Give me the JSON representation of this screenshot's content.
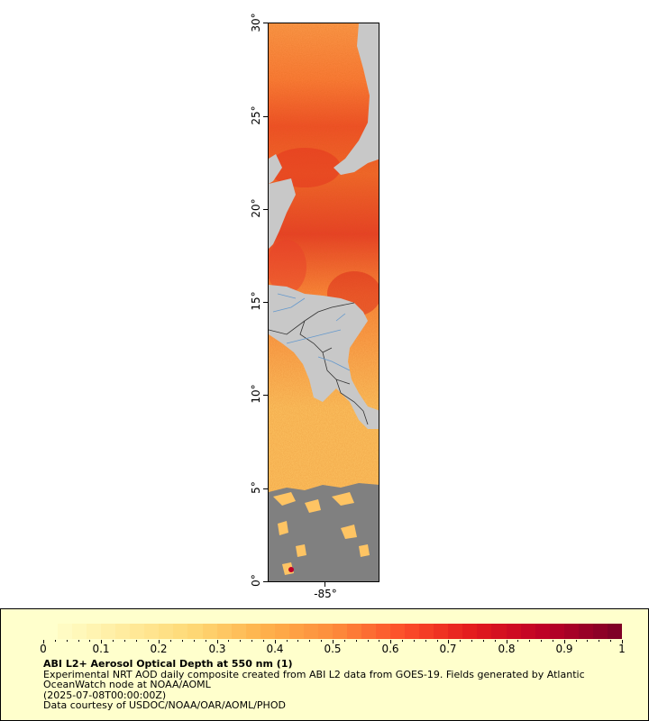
{
  "map": {
    "lat_axis": [
      "0°",
      "5°",
      "10°",
      "15°",
      "20°",
      "25°",
      "30°"
    ],
    "lon_axis": [
      "-85°"
    ],
    "colors": {
      "no_data": "#808080",
      "land": "#c8c8c8",
      "borders": "#333333",
      "rivers": "#6699cc"
    }
  },
  "legend": {
    "colorbar_ticks": [
      "0",
      "0.1",
      "0.2",
      "0.3",
      "0.4",
      "0.5",
      "0.6",
      "0.7",
      "0.8",
      "0.9",
      "1"
    ],
    "colorscale": [
      "#ffffcc",
      "#ffeda0",
      "#fed976",
      "#feb24c",
      "#fd8d3c",
      "#fc4e2a",
      "#e31a1c",
      "#bd0026",
      "#800026"
    ],
    "title": "ABI L2+ Aerosol Optical Depth at 550 nm (1)",
    "line1": "Experimental NRT AOD daily composite created from ABI L2 data from GOES-19. Fields generated by Atlantic",
    "line2": "OceanWatch node at NOAA/AOML",
    "line3": "(2025-07-08T00:00:00Z)",
    "line4": "Data courtesy of USDOC/NOAA/OAR/AOML/PHOD"
  }
}
